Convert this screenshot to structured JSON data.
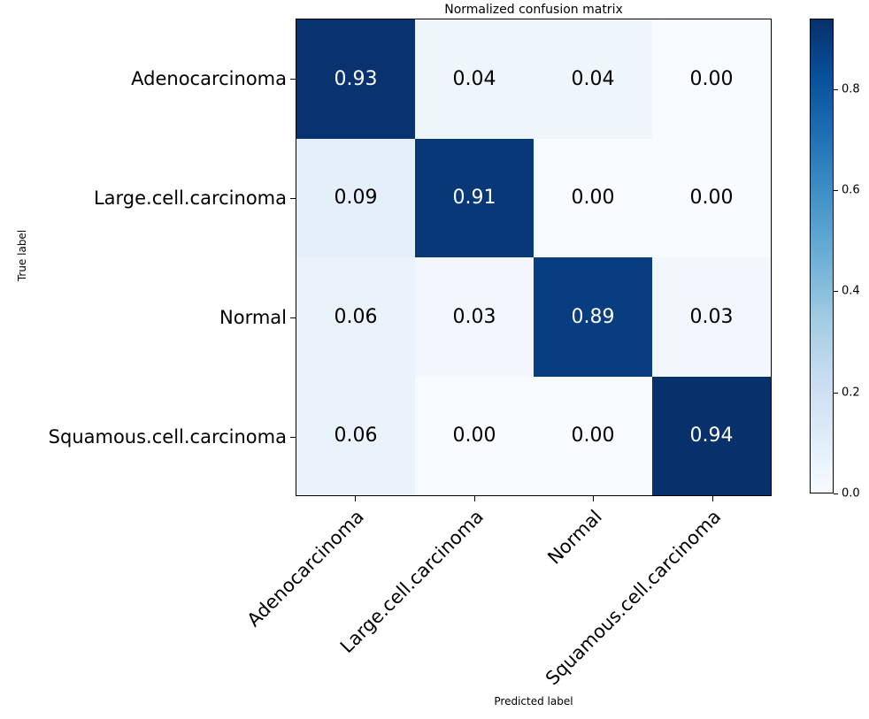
{
  "chart_data": {
    "type": "heatmap",
    "title": "Normalized confusion matrix",
    "xlabel": "Predicted label",
    "ylabel": "True label",
    "categories": [
      "Adenocarcinoma",
      "Large.cell.carcinoma",
      "Normal",
      "Squamous.cell.carcinoma"
    ],
    "rows": [
      {
        "true_label": "Adenocarcinoma",
        "values": [
          0.93,
          0.04,
          0.04,
          0.0
        ]
      },
      {
        "true_label": "Large.cell.carcinoma",
        "values": [
          0.09,
          0.91,
          0.0,
          0.0
        ]
      },
      {
        "true_label": "Normal",
        "values": [
          0.06,
          0.03,
          0.89,
          0.03
        ]
      },
      {
        "true_label": "Squamous.cell.carcinoma",
        "values": [
          0.06,
          0.0,
          0.0,
          0.94
        ]
      }
    ],
    "value_format_decimals": 2,
    "vmin": 0.0,
    "vmax": 0.94,
    "colormap_name": "Blues",
    "colormap_anchors": [
      "#f7fbff",
      "#deebf7",
      "#c6dbef",
      "#9ecae1",
      "#6baed6",
      "#4292c6",
      "#2171b5",
      "#08519c",
      "#08306b"
    ],
    "cell_text_light": "#ffffff",
    "cell_text_dark": "#000000",
    "grid": false,
    "legend_position": "colorbar-right",
    "colorbar_ticks": [
      {
        "label": "0.0",
        "value": 0.0
      },
      {
        "label": "0.2",
        "value": 0.2
      },
      {
        "label": "0.4",
        "value": 0.4
      },
      {
        "label": "0.6",
        "value": 0.6
      },
      {
        "label": "0.8",
        "value": 0.8
      }
    ]
  }
}
